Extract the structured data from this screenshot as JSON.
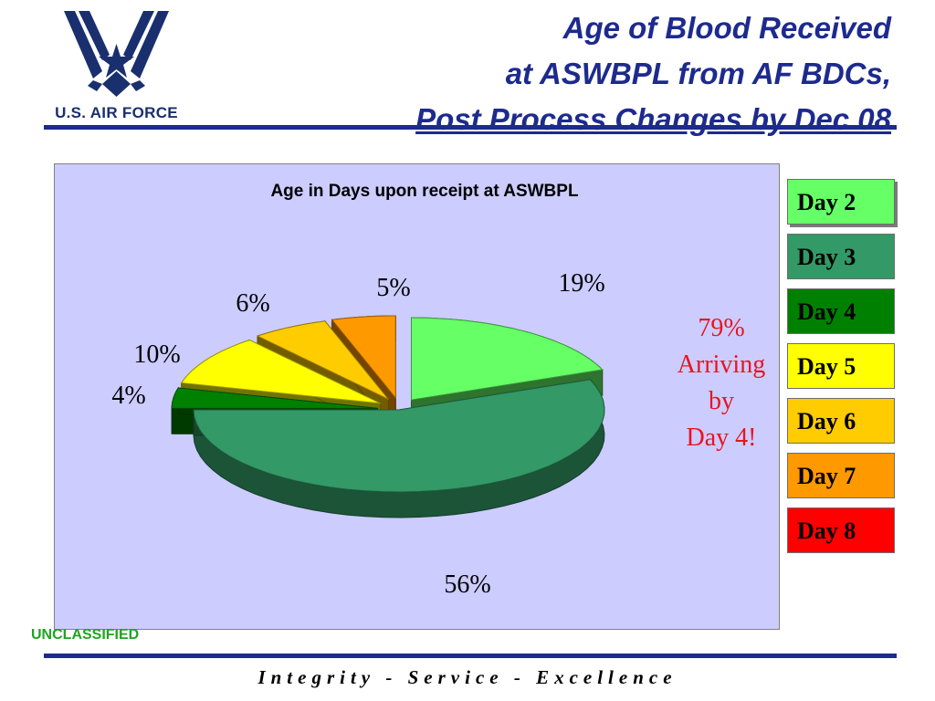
{
  "logo": {
    "text": "U.S. AIR FORCE",
    "icon": "air-force-wing-star"
  },
  "title": {
    "line1": "Age of Blood Received",
    "line2": "at ASWBPL from AF BDCs,",
    "line3": "Post Process Changes by Dec 08"
  },
  "chart_data": {
    "type": "pie",
    "title": "Age in Days upon receipt at ASWBPL",
    "slices": [
      {
        "label": "Day 2",
        "value": 19,
        "display": "19%",
        "color": "#66ff66"
      },
      {
        "label": "Day 3",
        "value": 56,
        "display": "56%",
        "color": "#339966"
      },
      {
        "label": "Day 4",
        "value": 4,
        "display": "4%",
        "color": "#008000"
      },
      {
        "label": "Day 5",
        "value": 10,
        "display": "10%",
        "color": "#ffff00"
      },
      {
        "label": "Day 6",
        "value": 6,
        "display": "6%",
        "color": "#ffcc00"
      },
      {
        "label": "Day 7",
        "value": 5,
        "display": "5%",
        "color": "#ff9900"
      },
      {
        "label": "Day 8",
        "value": 0,
        "display": "",
        "color": "#ff0000"
      }
    ],
    "legend_position": "right",
    "style": "3d-exploded"
  },
  "callout": {
    "line1": "79%",
    "line2": "Arriving",
    "line3": "by",
    "line4": "Day 4!"
  },
  "classification": "UNCLASSIFIED",
  "footer": "Integrity - Service - Excellence"
}
